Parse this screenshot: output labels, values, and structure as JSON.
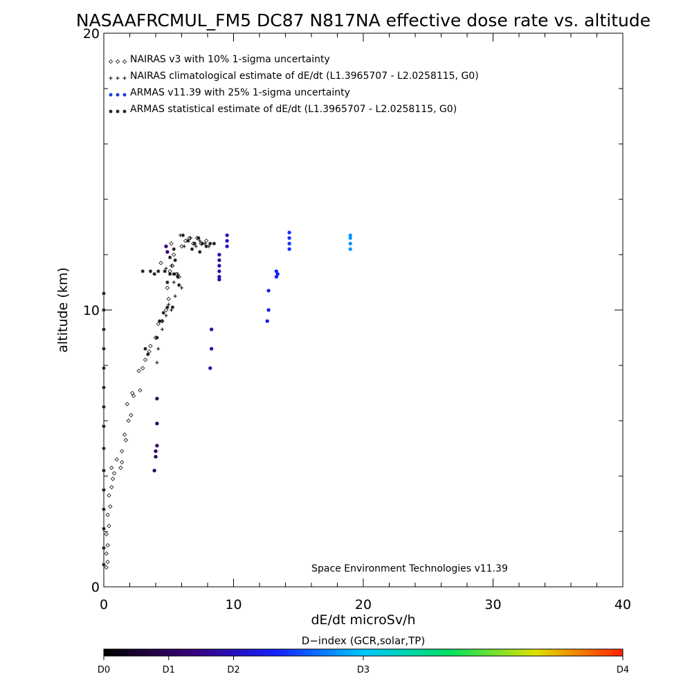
{
  "chart_data": {
    "type": "scatter",
    "title": "NASAAFRCMUL_FM5 DC87 N817NA effective dose rate vs. altitude",
    "xlabel": "dE/dt microSv/h",
    "ylabel": "altitude (km)",
    "xlim": [
      0,
      40
    ],
    "ylim": [
      0,
      20
    ],
    "x_ticks": [
      0,
      10,
      20,
      30,
      40
    ],
    "y_ticks": [
      0,
      10,
      20
    ],
    "legend_position": "top-left",
    "annotation": "Space Environment Technologies v11.39",
    "legend": [
      {
        "label": "NAIRAS v3 with 10% 1-sigma uncertainty",
        "marker": "diamond",
        "color": "#000000"
      },
      {
        "label": "NAIRAS climatological estimate of dE/dt (L1.3965707 - L2.0258115, G0)",
        "marker": "plus",
        "color": "#000000"
      },
      {
        "label": "ARMAS v11.39 with 25% 1-sigma uncertainty",
        "marker": "circle",
        "color": "#1a3fd8"
      },
      {
        "label": "ARMAS statistical estimate of dE/dt (L1.3965707 - L2.0258115, G0)",
        "marker": "asterisk",
        "color": "#000000"
      }
    ],
    "series": [
      {
        "name": "NAIRAS v3 with 10% 1-sigma uncertainty",
        "marker": "diamond",
        "points": [
          [
            0.2,
            0.7
          ],
          [
            0.3,
            0.9
          ],
          [
            0.2,
            1.2
          ],
          [
            0.3,
            1.5
          ],
          [
            0.2,
            1.9
          ],
          [
            0.4,
            2.2
          ],
          [
            0.3,
            2.6
          ],
          [
            0.5,
            2.9
          ],
          [
            0.4,
            3.3
          ],
          [
            0.6,
            3.6
          ],
          [
            0.7,
            3.9
          ],
          [
            0.8,
            4.1
          ],
          [
            0.6,
            4.3
          ],
          [
            1.0,
            4.6
          ],
          [
            1.3,
            4.3
          ],
          [
            1.4,
            4.5
          ],
          [
            1.4,
            4.9
          ],
          [
            1.7,
            5.3
          ],
          [
            1.6,
            5.5
          ],
          [
            1.9,
            6.0
          ],
          [
            2.1,
            6.2
          ],
          [
            1.8,
            6.6
          ],
          [
            2.3,
            6.9
          ],
          [
            2.2,
            7.0
          ],
          [
            2.8,
            7.1
          ],
          [
            2.7,
            7.8
          ],
          [
            3.0,
            7.9
          ],
          [
            3.2,
            8.2
          ],
          [
            3.5,
            8.5
          ],
          [
            3.6,
            8.7
          ],
          [
            4.0,
            9.0
          ],
          [
            4.2,
            9.5
          ],
          [
            4.5,
            9.6
          ],
          [
            4.8,
            10.0
          ],
          [
            5.0,
            10.4
          ],
          [
            4.9,
            10.8
          ],
          [
            5.1,
            11.4
          ],
          [
            5.3,
            11.6
          ],
          [
            4.4,
            11.7
          ],
          [
            5.6,
            11.3
          ],
          [
            5.8,
            11.2
          ],
          [
            5.4,
            12.0
          ],
          [
            5.2,
            12.4
          ],
          [
            6.0,
            12.3
          ],
          [
            6.3,
            12.5
          ],
          [
            6.9,
            12.4
          ],
          [
            7.2,
            12.6
          ],
          [
            7.5,
            12.4
          ],
          [
            6.6,
            12.6
          ],
          [
            7.9,
            12.5
          ]
        ]
      },
      {
        "name": "NAIRAS climatological estimate of dE/dt (L1.3965707 - L2.0258115, G0)",
        "marker": "plus",
        "points": [
          [
            4.1,
            8.1
          ],
          [
            4.2,
            8.6
          ],
          [
            4.5,
            9.3
          ],
          [
            4.8,
            9.8
          ],
          [
            5.0,
            10.2
          ],
          [
            5.5,
            10.5
          ],
          [
            5.4,
            11.0
          ],
          [
            6.0,
            10.8
          ],
          [
            5.7,
            11.3
          ],
          [
            5.2,
            11.6
          ],
          [
            6.2,
            12.3
          ],
          [
            6.7,
            12.6
          ],
          [
            7.1,
            12.3
          ],
          [
            7.4,
            12.5
          ],
          [
            7.8,
            12.4
          ],
          [
            8.1,
            12.3
          ],
          [
            5.9,
            12.7
          ],
          [
            4.8,
            11.5
          ],
          [
            5.2,
            10.0
          ],
          [
            4.5,
            9.6
          ]
        ]
      },
      {
        "name": "ARMAS statistical estimate of dE/dt (L1.3965707 - L2.0258115, G0)",
        "marker": "asterisk",
        "points": [
          [
            0.0,
            0.8
          ],
          [
            0.0,
            1.4
          ],
          [
            0.0,
            2.1
          ],
          [
            0.0,
            2.8
          ],
          [
            0.0,
            3.5
          ],
          [
            0.0,
            4.2
          ],
          [
            0.0,
            5.0
          ],
          [
            0.0,
            5.8
          ],
          [
            0.0,
            6.5
          ],
          [
            0.0,
            7.2
          ],
          [
            0.0,
            7.9
          ],
          [
            0.0,
            8.6
          ],
          [
            0.0,
            9.3
          ],
          [
            0.0,
            10.0
          ],
          [
            0.0,
            10.6
          ],
          [
            3.2,
            8.6
          ],
          [
            3.4,
            8.4
          ],
          [
            4.1,
            9.0
          ],
          [
            4.3,
            9.6
          ],
          [
            4.6,
            9.9
          ],
          [
            4.9,
            10.1
          ],
          [
            5.3,
            10.1
          ],
          [
            3.0,
            11.4
          ],
          [
            3.6,
            11.4
          ],
          [
            3.9,
            11.3
          ],
          [
            4.2,
            11.4
          ],
          [
            4.7,
            11.4
          ],
          [
            5.1,
            11.3
          ],
          [
            5.4,
            11.3
          ],
          [
            5.7,
            11.2
          ],
          [
            5.1,
            11.9
          ],
          [
            5.5,
            11.8
          ],
          [
            4.9,
            11.0
          ],
          [
            5.8,
            10.9
          ],
          [
            5.4,
            12.2
          ],
          [
            6.1,
            12.7
          ],
          [
            6.5,
            12.5
          ],
          [
            7.0,
            12.4
          ],
          [
            7.3,
            12.6
          ],
          [
            7.6,
            12.4
          ],
          [
            7.9,
            12.3
          ],
          [
            8.2,
            12.4
          ],
          [
            8.5,
            12.4
          ],
          [
            7.4,
            12.1
          ],
          [
            6.8,
            12.2
          ]
        ]
      },
      {
        "name": "ARMAS v11.39 with 25% 1-sigma uncertainty",
        "marker": "circle",
        "points": [
          [
            3.9,
            4.2
          ],
          [
            4.0,
            4.7
          ],
          [
            4.0,
            4.9
          ],
          [
            4.1,
            5.1
          ],
          [
            4.1,
            5.9
          ],
          [
            4.1,
            6.8
          ],
          [
            4.8,
            12.3
          ],
          [
            4.9,
            12.1
          ],
          [
            8.2,
            7.9
          ],
          [
            8.3,
            8.6
          ],
          [
            8.3,
            9.3
          ],
          [
            8.9,
            11.1
          ],
          [
            8.9,
            11.2
          ],
          [
            8.9,
            11.4
          ],
          [
            8.9,
            11.6
          ],
          [
            8.9,
            11.8
          ],
          [
            8.9,
            12.0
          ],
          [
            9.5,
            12.3
          ],
          [
            9.5,
            12.5
          ],
          [
            9.5,
            12.7
          ],
          [
            12.6,
            9.6
          ],
          [
            12.7,
            10.0
          ],
          [
            12.7,
            10.7
          ],
          [
            13.3,
            11.2
          ],
          [
            13.3,
            11.4
          ],
          [
            13.4,
            11.3
          ],
          [
            14.3,
            12.2
          ],
          [
            14.3,
            12.4
          ],
          [
            14.3,
            12.6
          ],
          [
            14.3,
            12.8
          ],
          [
            19.0,
            12.2
          ],
          [
            19.0,
            12.4
          ],
          [
            19.0,
            12.6
          ],
          [
            19.0,
            12.7
          ]
        ],
        "d_index": [
          0.5,
          0.5,
          0.5,
          0.5,
          0.5,
          0.5,
          0.6,
          0.6,
          0.9,
          0.9,
          0.9,
          0.9,
          0.9,
          0.9,
          0.9,
          0.9,
          0.9,
          1.0,
          1.0,
          1.0,
          1.2,
          1.2,
          1.2,
          1.3,
          1.3,
          1.3,
          1.4,
          1.4,
          1.4,
          1.4,
          1.8,
          1.8,
          1.8,
          1.8
        ]
      }
    ]
  },
  "colorbar": {
    "label": "D−index (GCR,solar,TP)",
    "ticks": [
      {
        "label": "D0",
        "value": 0
      },
      {
        "label": "D1",
        "value": 1
      },
      {
        "label": "D2",
        "value": 2
      },
      {
        "label": "D3",
        "value": 3
      },
      {
        "label": "D4",
        "value": 4
      }
    ],
    "tick_fractions": [
      0,
      0.125,
      0.25,
      0.5,
      1.0
    ],
    "gradient": [
      "#000000",
      "#3a0078",
      "#1420ff",
      "#00c8ff",
      "#00e060",
      "#e0e000",
      "#ff2000"
    ]
  }
}
